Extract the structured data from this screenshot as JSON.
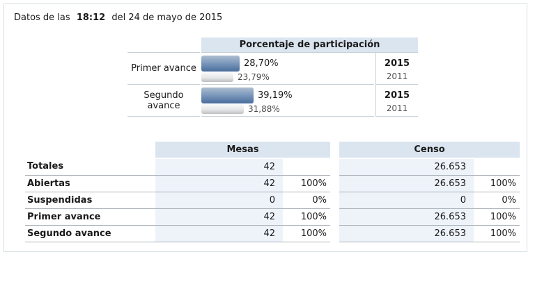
{
  "titlebar": {
    "prefix": "Datos de las",
    "time": "18:12",
    "suffix": "del 24 de mayo de 2015"
  },
  "participation": {
    "header": "Porcentaje de participación",
    "rows": [
      {
        "label": "Primer avance",
        "cur_text": "28,70%",
        "cur_value": 28.7,
        "cur_year": "2015",
        "prev_text": "23,79%",
        "prev_value": 23.79,
        "prev_year": "2011"
      },
      {
        "label": "Segundo avance",
        "cur_text": "39,19%",
        "cur_value": 39.19,
        "cur_year": "2015",
        "prev_text": "31,88%",
        "prev_value": 31.88,
        "prev_year": "2011"
      }
    ]
  },
  "summary": {
    "headers": {
      "mesas": "Mesas",
      "censo": "Censo"
    },
    "rows": [
      {
        "label": "Totales",
        "mesas": "42",
        "mesas_pct": "",
        "censo": "26.653",
        "censo_pct": ""
      },
      {
        "label": "Abiertas",
        "mesas": "42",
        "mesas_pct": "100%",
        "censo": "26.653",
        "censo_pct": "100%"
      },
      {
        "label": "Suspendidas",
        "mesas": "0",
        "mesas_pct": "0%",
        "censo": "0",
        "censo_pct": "0%"
      },
      {
        "label": "Primer avance",
        "mesas": "42",
        "mesas_pct": "100%",
        "censo": "26.653",
        "censo_pct": "100%"
      },
      {
        "label": "Segundo avance",
        "mesas": "42",
        "mesas_pct": "100%",
        "censo": "26.653",
        "censo_pct": "100%"
      }
    ]
  },
  "colors": {
    "text": "#1a1a1a",
    "muted": "#4a4a4a",
    "panel_border": "#d6dfe2",
    "header_bg": "#dae5ef",
    "cell_bg": "#eef3fa",
    "table_border": "#c6ced4",
    "row_border": "#aab1b7",
    "bar_blue_top": "#aebdd0",
    "bar_blue_bottom": "#4a6d9c",
    "bar_gray_top": "#fafafa",
    "bar_gray_bottom": "#bdbfc1"
  }
}
